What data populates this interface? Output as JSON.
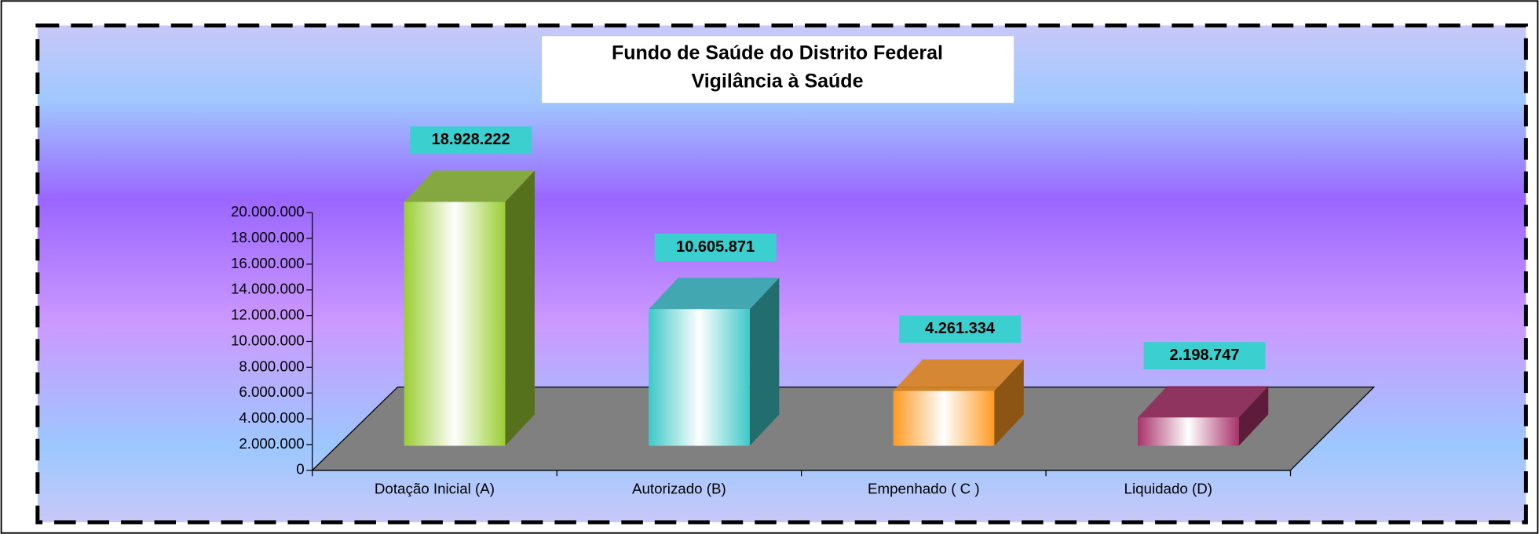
{
  "chart_data": {
    "type": "bar3d",
    "title": [
      "Fundo de Saúde do Distrito Federal",
      "Vigilância à Saúde"
    ],
    "categories": [
      "Dotação Inicial (A)",
      "Autorizado (B)",
      "Empenhado ( C )",
      "Liquidado (D)"
    ],
    "values": [
      18928222,
      10605871,
      4261334,
      2198747
    ],
    "value_labels": [
      "18.928.222",
      "10.605.871",
      "4.261.334",
      "2.198.747"
    ],
    "colors": [
      "#9acd32",
      "#3ec8c8",
      "#ff9a22",
      "#a8326a"
    ],
    "ylim": [
      0,
      20000000
    ],
    "yticks": [
      0,
      {
        "value": 2000000,
        "label": "2.000.000"
      },
      {
        "value": 4000000,
        "label": "4.000.000"
      },
      {
        "value": 6000000,
        "label": "6.000.000"
      },
      {
        "value": 8000000,
        "label": "8.000.000"
      },
      {
        "value": 10000000,
        "label": "10.000.000"
      },
      {
        "value": 12000000,
        "label": "12.000.000"
      },
      {
        "value": 14000000,
        "label": "14.000.000"
      },
      {
        "value": 16000000,
        "label": "16.000.000"
      },
      {
        "value": 18000000,
        "label": "18.000.000"
      },
      {
        "value": 20000000,
        "label": "20.000.000"
      }
    ]
  }
}
